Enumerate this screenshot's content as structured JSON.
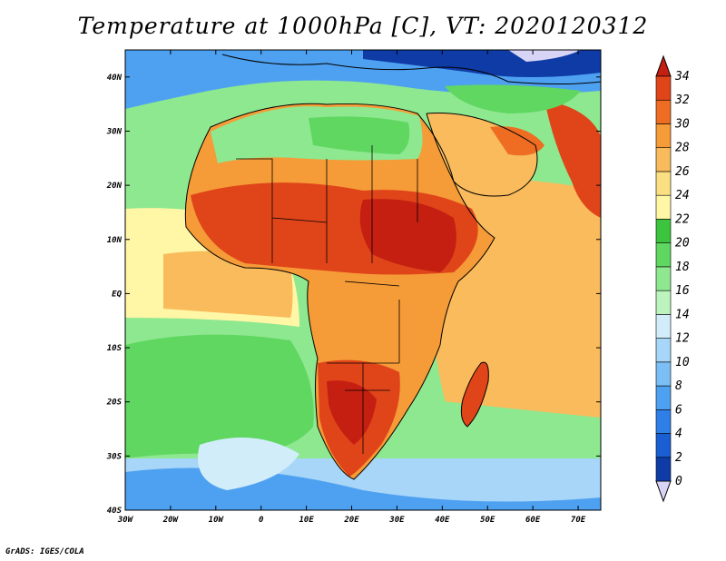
{
  "title": "Temperature at 1000hPa [C], VT: 2020120312",
  "credit": "GrADS: IGES/COLA",
  "map": {
    "lon_range": [
      -30,
      75
    ],
    "lat_range": [
      -40,
      45
    ],
    "x_ticks": [
      "30W",
      "20W",
      "10W",
      "0",
      "10E",
      "20E",
      "30E",
      "40E",
      "50E",
      "60E",
      "70E"
    ],
    "x_tick_values": [
      -30,
      -20,
      -10,
      0,
      10,
      20,
      30,
      40,
      50,
      60,
      70
    ],
    "y_ticks": [
      "40S",
      "30S",
      "20S",
      "10S",
      "EQ",
      "10N",
      "20N",
      "30N",
      "40N"
    ],
    "y_tick_values": [
      -40,
      -30,
      -20,
      -10,
      0,
      10,
      20,
      30,
      40
    ]
  },
  "colorbar": {
    "labels": [
      "0",
      "2",
      "4",
      "6",
      "8",
      "10",
      "12",
      "14",
      "16",
      "18",
      "20",
      "22",
      "24",
      "26",
      "28",
      "30",
      "32",
      "34"
    ],
    "colors": [
      "#151d77",
      "#0e3ba6",
      "#1a5ed4",
      "#2f7fe8",
      "#4ea1f0",
      "#7bbff5",
      "#a7d6f8",
      "#d2edfa",
      "#bdf4bd",
      "#8ee890",
      "#5fd760",
      "#3dc43f",
      "#fff6a6",
      "#fbdf83",
      "#f9bb5c",
      "#f59b37",
      "#ee6d22",
      "#e0451a",
      "#c51f12"
    ],
    "under_color": "#d8d4f5",
    "over_color": "#c51f12"
  }
}
